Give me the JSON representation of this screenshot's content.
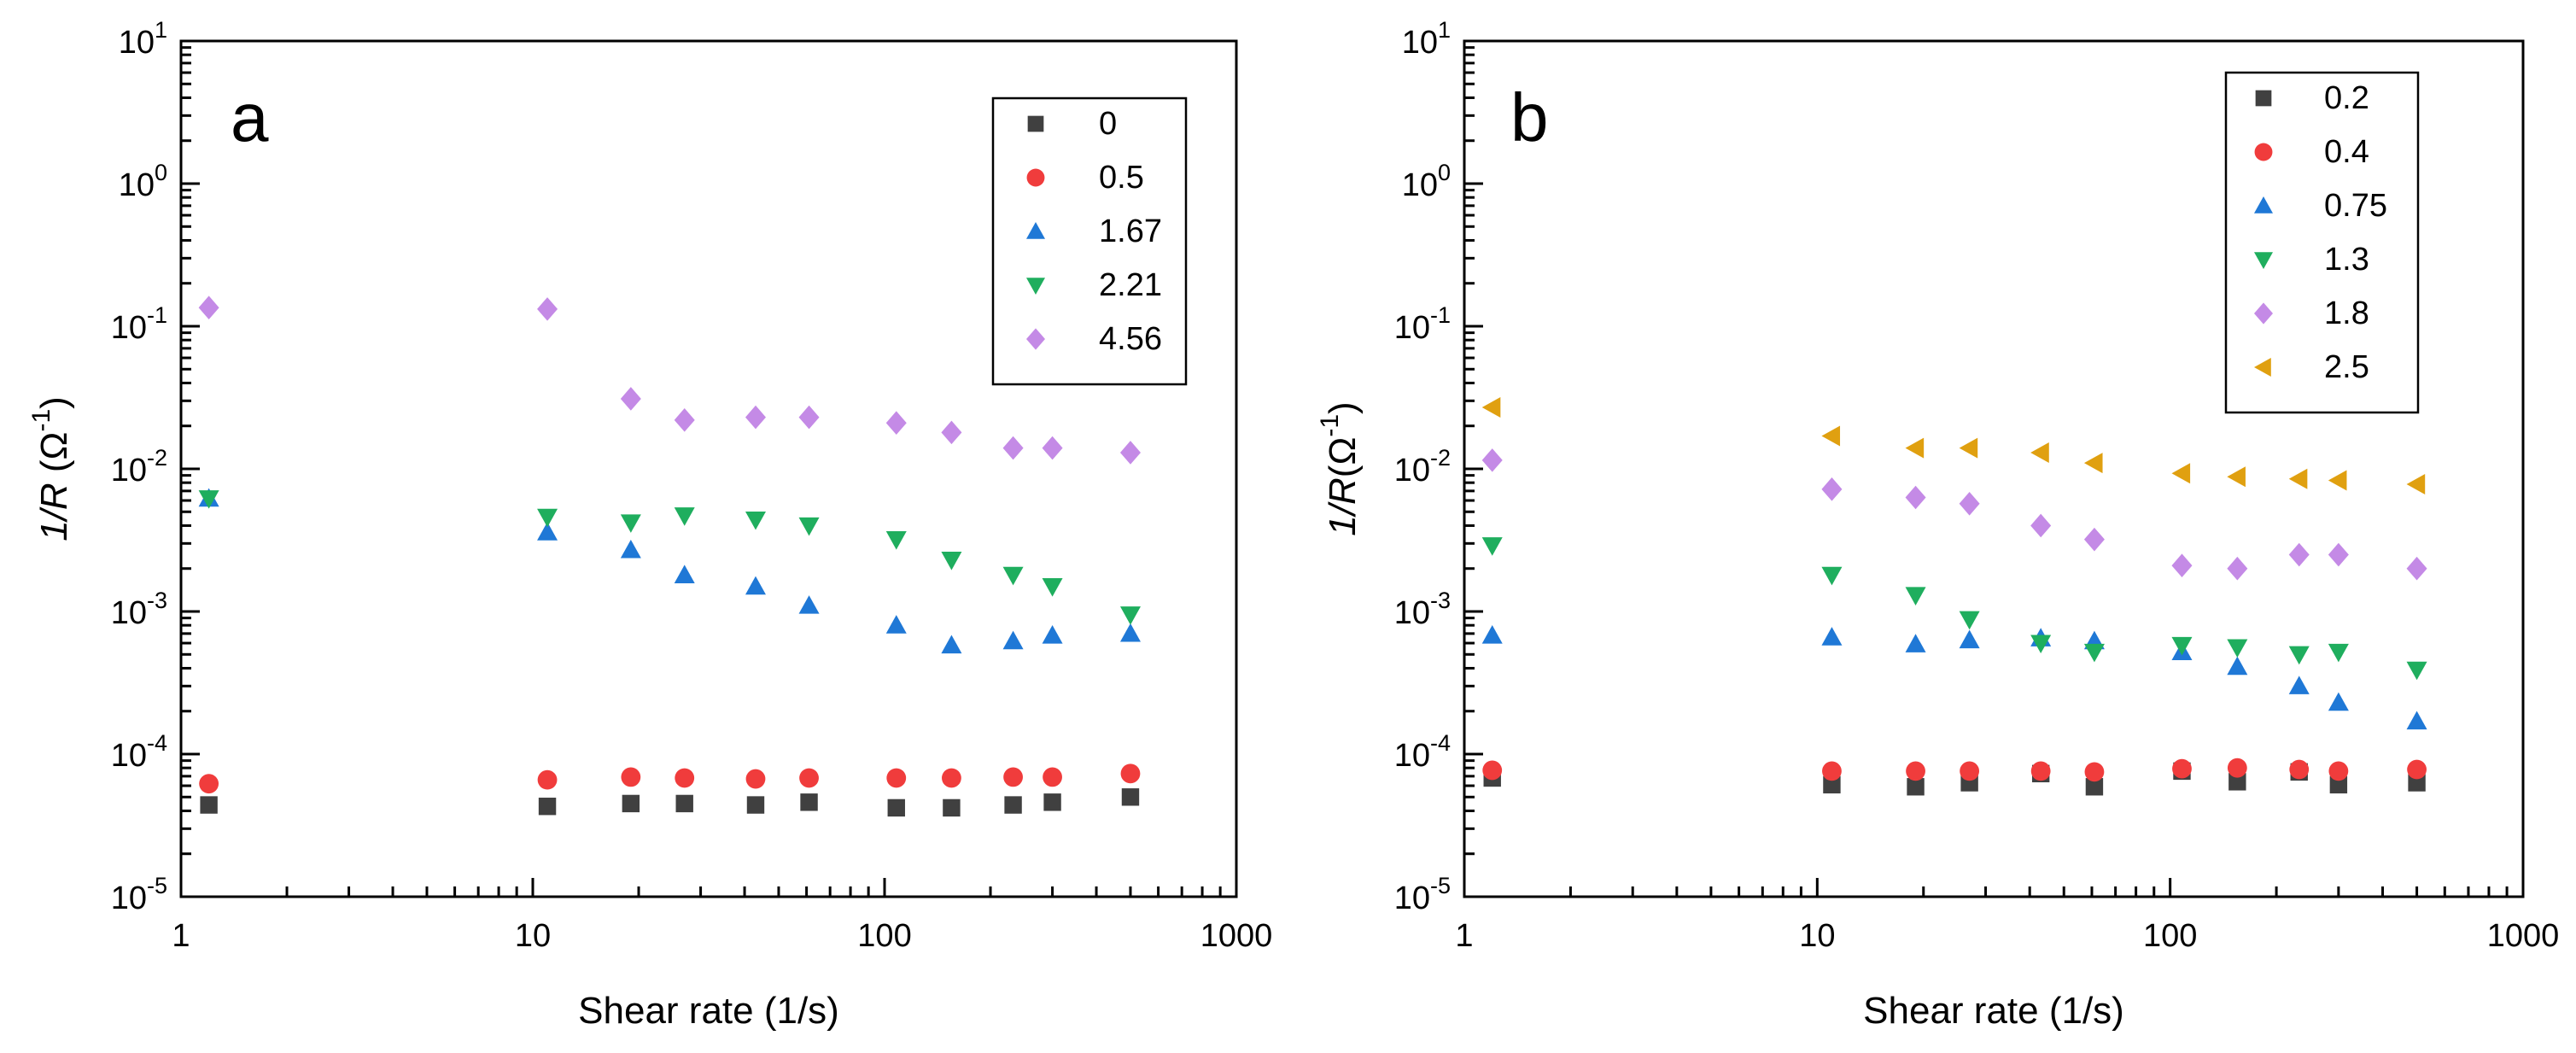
{
  "chart_data": [
    {
      "type": "scatter",
      "panel_label": "a",
      "xlabel": "Shear rate (1/s)",
      "ylabel_main": "1/R",
      "ylabel_unit": "Ω",
      "ylabel_exp": "-1",
      "xscale": "log",
      "yscale": "log",
      "xlim": [
        1,
        1000
      ],
      "ylim": [
        1e-05,
        10
      ],
      "x_ticks": [
        {
          "value": 1,
          "label": "1"
        },
        {
          "value": 10,
          "label": "10"
        },
        {
          "value": 100,
          "label": "100"
        },
        {
          "value": 1000,
          "label": "1000"
        }
      ],
      "y_ticks": [
        {
          "value": 1e-05,
          "base": "10",
          "exp": "-5"
        },
        {
          "value": 0.0001,
          "base": "10",
          "exp": "-4"
        },
        {
          "value": 0.001,
          "base": "10",
          "exp": "-3"
        },
        {
          "value": 0.01,
          "base": "10",
          "exp": "-2"
        },
        {
          "value": 0.1,
          "base": "10",
          "exp": "-1"
        },
        {
          "value": 1,
          "base": "10",
          "exp": "0"
        },
        {
          "value": 10,
          "base": "10",
          "exp": "1"
        }
      ],
      "legend_position": "top-right",
      "series": [
        {
          "name": "0",
          "marker": "square",
          "color": "#404040",
          "x": [
            1.2,
            11,
            19,
            27,
            43,
            61,
            108,
            155,
            232,
            300,
            500
          ],
          "y": [
            4.4e-05,
            4.3e-05,
            4.5e-05,
            4.5e-05,
            4.4e-05,
            4.6e-05,
            4.2e-05,
            4.2e-05,
            4.4e-05,
            4.6e-05,
            5e-05
          ]
        },
        {
          "name": "0.5",
          "marker": "circle",
          "color": "#f03c3c",
          "x": [
            1.2,
            11,
            19,
            27,
            43,
            61,
            108,
            155,
            232,
            300,
            500
          ],
          "y": [
            6.2e-05,
            6.6e-05,
            6.9e-05,
            6.8e-05,
            6.7e-05,
            6.8e-05,
            6.8e-05,
            6.8e-05,
            6.9e-05,
            6.9e-05,
            7.3e-05
          ]
        },
        {
          "name": "1.67",
          "marker": "triangle-up",
          "color": "#1f78d6",
          "x": [
            1.2,
            11,
            19,
            27,
            43,
            61,
            108,
            155,
            232,
            300,
            500
          ],
          "y": [
            0.0062,
            0.0036,
            0.0027,
            0.0018,
            0.0015,
            0.0011,
            0.0008,
            0.00058,
            0.00062,
            0.00068,
            0.0007
          ]
        },
        {
          "name": "2.21",
          "marker": "triangle-down",
          "color": "#1fae5e",
          "x": [
            1.2,
            11,
            19,
            27,
            43,
            61,
            108,
            155,
            232,
            300,
            500
          ],
          "y": [
            0.0062,
            0.0046,
            0.0042,
            0.0047,
            0.0044,
            0.004,
            0.0032,
            0.0023,
            0.0018,
            0.0015,
            0.00095
          ]
        },
        {
          "name": "4.56",
          "marker": "diamond",
          "color": "#c48ae6",
          "x": [
            1.2,
            11,
            19,
            27,
            43,
            61,
            108,
            155,
            232,
            300,
            500
          ],
          "y": [
            0.135,
            0.132,
            0.031,
            0.022,
            0.023,
            0.023,
            0.021,
            0.018,
            0.014,
            0.014,
            0.013
          ]
        }
      ]
    },
    {
      "type": "scatter",
      "panel_label": "b",
      "xlabel": "Shear rate (1/s)",
      "ylabel_main": "1/R",
      "ylabel_unit": "Ω",
      "ylabel_exp": "-1",
      "xscale": "log",
      "yscale": "log",
      "xlim": [
        1,
        1000
      ],
      "ylim": [
        1e-05,
        10
      ],
      "x_ticks": [
        {
          "value": 1,
          "label": "1"
        },
        {
          "value": 10,
          "label": "10"
        },
        {
          "value": 100,
          "label": "100"
        },
        {
          "value": 1000,
          "label": "1000"
        }
      ],
      "y_ticks": [
        {
          "value": 1e-05,
          "base": "10",
          "exp": "-5"
        },
        {
          "value": 0.0001,
          "base": "10",
          "exp": "-4"
        },
        {
          "value": 0.001,
          "base": "10",
          "exp": "-3"
        },
        {
          "value": 0.01,
          "base": "10",
          "exp": "-2"
        },
        {
          "value": 0.1,
          "base": "10",
          "exp": "-1"
        },
        {
          "value": 1,
          "base": "10",
          "exp": "0"
        },
        {
          "value": 10,
          "base": "10",
          "exp": "1"
        }
      ],
      "legend_position": "top-right",
      "series": [
        {
          "name": "0.2",
          "marker": "square",
          "color": "#404040",
          "x": [
            1.2,
            11,
            19,
            27,
            43,
            61,
            108,
            155,
            232,
            300,
            500
          ],
          "y": [
            6.8e-05,
            6.1e-05,
            5.9e-05,
            6.3e-05,
            7.3e-05,
            5.9e-05,
            7.6e-05,
            6.4e-05,
            7.5e-05,
            6.1e-05,
            6.3e-05
          ]
        },
        {
          "name": "0.4",
          "marker": "circle",
          "color": "#f03c3c",
          "x": [
            1.2,
            11,
            19,
            27,
            43,
            61,
            108,
            155,
            232,
            300,
            500
          ],
          "y": [
            7.7e-05,
            7.6e-05,
            7.6e-05,
            7.6e-05,
            7.6e-05,
            7.5e-05,
            7.9e-05,
            8e-05,
            7.8e-05,
            7.6e-05,
            7.8e-05
          ]
        },
        {
          "name": "0.75",
          "marker": "triangle-up",
          "color": "#1f78d6",
          "x": [
            1.2,
            11,
            19,
            27,
            43,
            61,
            108,
            155,
            232,
            300,
            500
          ],
          "y": [
            0.00068,
            0.00066,
            0.00059,
            0.00063,
            0.00065,
            0.00062,
            0.00052,
            0.00041,
            0.0003,
            0.00023,
            0.00017
          ]
        },
        {
          "name": "1.3",
          "marker": "triangle-down",
          "color": "#1fae5e",
          "x": [
            1.2,
            11,
            19,
            27,
            43,
            61,
            108,
            155,
            232,
            300,
            500
          ],
          "y": [
            0.0029,
            0.0018,
            0.0013,
            0.00088,
            0.0006,
            0.00052,
            0.00058,
            0.00056,
            0.0005,
            0.00052,
            0.00039
          ]
        },
        {
          "name": "1.8",
          "marker": "diamond",
          "color": "#c48ae6",
          "x": [
            1.2,
            11,
            19,
            27,
            43,
            61,
            108,
            155,
            232,
            300,
            500
          ],
          "y": [
            0.0115,
            0.0072,
            0.0063,
            0.0057,
            0.004,
            0.0032,
            0.0021,
            0.002,
            0.0025,
            0.0025,
            0.002
          ]
        },
        {
          "name": "2.5",
          "marker": "triangle-left",
          "color": "#e0a010",
          "x": [
            1.2,
            11,
            19,
            27,
            43,
            61,
            108,
            155,
            232,
            300,
            500
          ],
          "y": [
            0.027,
            0.017,
            0.014,
            0.014,
            0.013,
            0.011,
            0.0093,
            0.0088,
            0.0085,
            0.0083,
            0.0078
          ]
        }
      ]
    }
  ]
}
